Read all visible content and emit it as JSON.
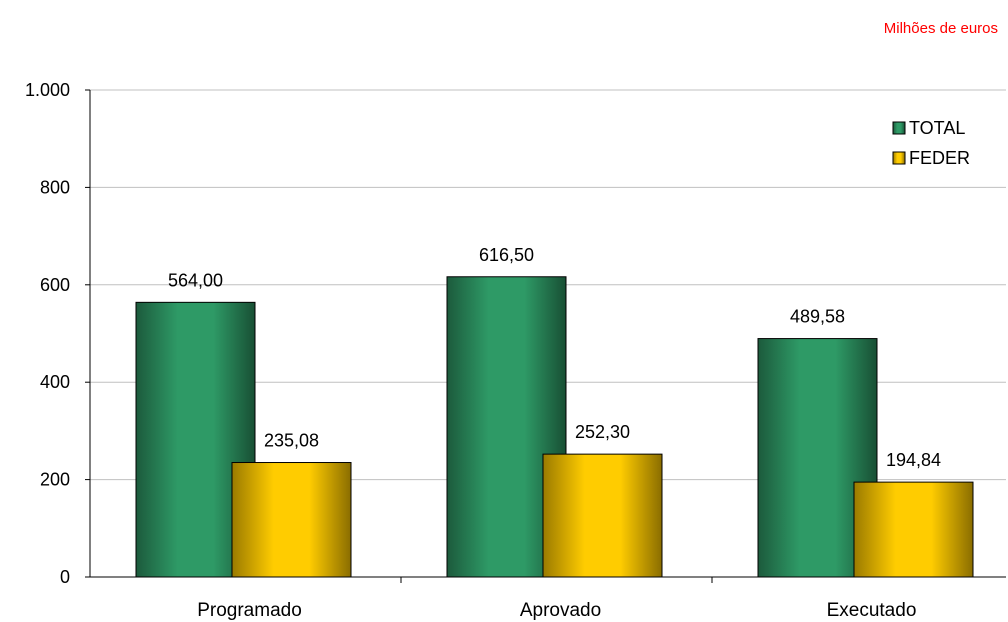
{
  "unit_label": "Milhões de euros",
  "colors": {
    "unit_label": "#ff0000",
    "total": "#2e9a66",
    "feder": "#ffcc00",
    "grid": "#c0c0c0",
    "axis": "#000000",
    "text": "#000000"
  },
  "chart_data": {
    "type": "bar",
    "categories": [
      "Programado",
      "Aprovado",
      "Executado"
    ],
    "series": [
      {
        "name": "TOTAL",
        "values": [
          564.0,
          616.5,
          489.58
        ],
        "labels": [
          "564,00",
          "616,50",
          "489,58"
        ]
      },
      {
        "name": "FEDER",
        "values": [
          235.08,
          252.3,
          194.84
        ],
        "labels": [
          "235,08",
          "252,30",
          "194,84"
        ]
      }
    ],
    "yticks": [
      0,
      200,
      400,
      600,
      800,
      1000
    ],
    "ytick_labels": [
      "0",
      "200",
      "400",
      "600",
      "800",
      "1.000"
    ],
    "ylim": [
      0,
      1000
    ],
    "grid": true,
    "legend_position": "top-right",
    "title": "",
    "xlabel": "",
    "ylabel": ""
  }
}
